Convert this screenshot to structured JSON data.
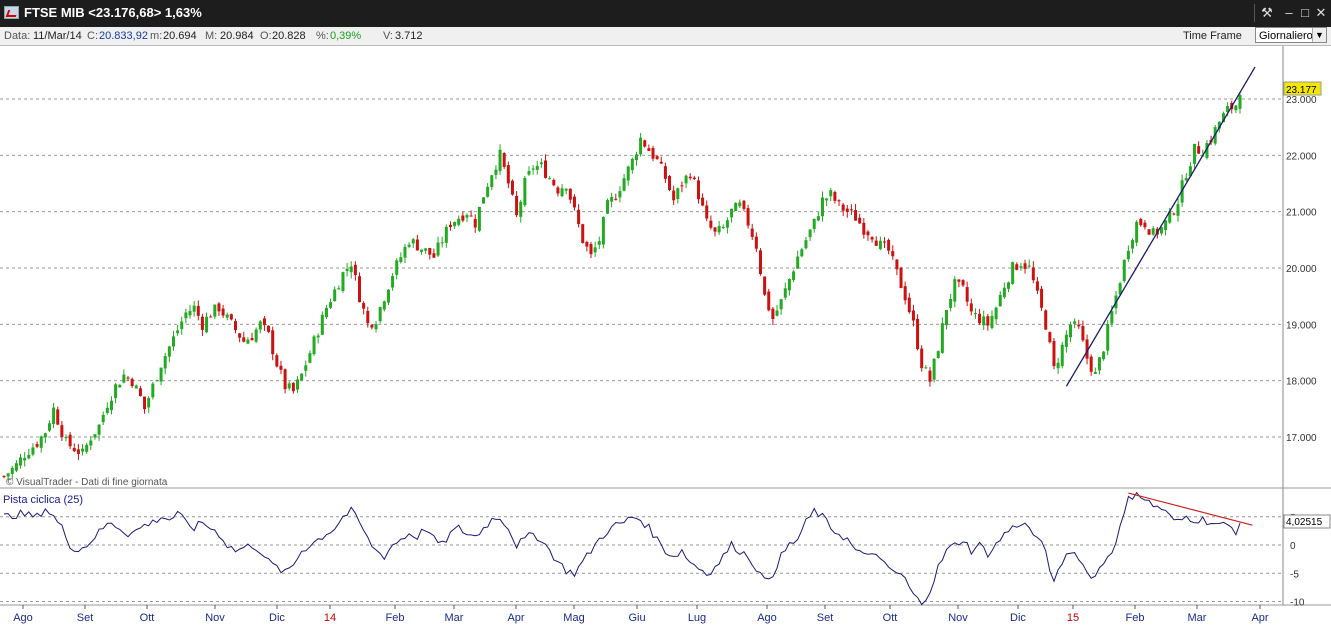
{
  "window": {
    "title": "FTSE MIB <23.176,68> 1,63%",
    "buttons": [
      "tools",
      "minimize",
      "maximize",
      "close"
    ]
  },
  "infobar": {
    "date_label": "Data:",
    "date_value": "11/Mar/14",
    "close_label": "C:",
    "close_value": "20.833,92",
    "min_label": "m:",
    "min_value": "20.694",
    "max_label": "M:",
    "max_value": "20.984",
    "open_label": "O:",
    "open_value": "20.828",
    "pct_label": "%:",
    "pct_value": "0,39%",
    "vol_label": "V:",
    "vol_value": "3.712",
    "timeframe_label": "Time Frame",
    "timeframe_value": "Giornaliero"
  },
  "watermark": "© VisualTrader - Dati di fine giornata",
  "chart_data": [
    {
      "type": "candlestick",
      "instrument": "FTSE MIB",
      "yticks": [
        "17.000",
        "18.000",
        "19.000",
        "20.000",
        "21.000",
        "22.000",
        "23.000"
      ],
      "ylim": [
        16000,
        24400
      ],
      "last_value_label": "23.177",
      "x_labels": [
        "Ago",
        "Set",
        "Ott",
        "Nov",
        "Dic",
        "14",
        "Feb",
        "Mar",
        "Apr",
        "Mag",
        "Giu",
        "Lug",
        "Ago",
        "Set",
        "Ott",
        "Nov",
        "Dic",
        "15",
        "Feb",
        "Mar",
        "Apr"
      ],
      "x_label_colors": {
        "14": "#cc0000",
        "15": "#cc0000"
      },
      "close_path": [
        [
          0,
          16300
        ],
        [
          3,
          16500
        ],
        [
          5,
          16700
        ],
        [
          8,
          16900
        ],
        [
          10,
          17100
        ],
        [
          12,
          17500
        ],
        [
          13,
          17300
        ],
        [
          15,
          16900
        ],
        [
          17,
          16800
        ],
        [
          19,
          16700
        ],
        [
          21,
          17000
        ],
        [
          23,
          17200
        ],
        [
          25,
          17600
        ],
        [
          27,
          17900
        ],
        [
          29,
          18100
        ],
        [
          31,
          18000
        ],
        [
          33,
          17700
        ],
        [
          34,
          17500
        ],
        [
          36,
          17900
        ],
        [
          38,
          18300
        ],
        [
          40,
          18600
        ],
        [
          42,
          18900
        ],
        [
          44,
          19200
        ],
        [
          46,
          19300
        ],
        [
          48,
          19000
        ],
        [
          50,
          19200
        ],
        [
          52,
          19300
        ],
        [
          54,
          19100
        ],
        [
          56,
          18900
        ],
        [
          58,
          18700
        ],
        [
          60,
          18800
        ],
        [
          62,
          19000
        ],
        [
          64,
          18800
        ],
        [
          66,
          18300
        ],
        [
          68,
          17900
        ],
        [
          70,
          17800
        ],
        [
          72,
          18100
        ],
        [
          74,
          18500
        ],
        [
          76,
          18900
        ],
        [
          78,
          19300
        ],
        [
          80,
          19600
        ],
        [
          82,
          19900
        ],
        [
          84,
          20100
        ],
        [
          86,
          19500
        ],
        [
          88,
          19000
        ],
        [
          90,
          19100
        ],
        [
          92,
          19500
        ],
        [
          94,
          19900
        ],
        [
          96,
          20200
        ],
        [
          98,
          20500
        ],
        [
          100,
          20400
        ],
        [
          102,
          20300
        ],
        [
          104,
          20200
        ],
        [
          106,
          20500
        ],
        [
          108,
          20800
        ],
        [
          110,
          20900
        ],
        [
          112,
          21000
        ],
        [
          114,
          20800
        ],
        [
          116,
          21300
        ],
        [
          118,
          21700
        ],
        [
          120,
          22000
        ],
        [
          122,
          21500
        ],
        [
          124,
          20900
        ],
        [
          126,
          21500
        ],
        [
          128,
          21800
        ],
        [
          130,
          21800
        ],
        [
          132,
          21600
        ],
        [
          134,
          21400
        ],
        [
          136,
          21500
        ],
        [
          138,
          21000
        ],
        [
          140,
          20500
        ],
        [
          142,
          20200
        ],
        [
          144,
          20500
        ],
        [
          146,
          21100
        ],
        [
          148,
          21300
        ],
        [
          150,
          21600
        ],
        [
          152,
          21900
        ],
        [
          154,
          22300
        ],
        [
          156,
          22100
        ],
        [
          158,
          21900
        ],
        [
          160,
          21600
        ],
        [
          162,
          21200
        ],
        [
          164,
          21500
        ],
        [
          166,
          21700
        ],
        [
          168,
          21300
        ],
        [
          170,
          20800
        ],
        [
          172,
          20600
        ],
        [
          174,
          20700
        ],
        [
          176,
          21000
        ],
        [
          178,
          21100
        ],
        [
          180,
          20800
        ],
        [
          182,
          20400
        ],
        [
          184,
          19500
        ],
        [
          186,
          19100
        ],
        [
          188,
          19400
        ],
        [
          190,
          19800
        ],
        [
          192,
          20200
        ],
        [
          194,
          20500
        ],
        [
          196,
          20800
        ],
        [
          198,
          21200
        ],
        [
          200,
          21300
        ],
        [
          202,
          21100
        ],
        [
          204,
          21000
        ],
        [
          206,
          20900
        ],
        [
          208,
          20700
        ],
        [
          210,
          20600
        ],
        [
          212,
          20400
        ],
        [
          214,
          20300
        ],
        [
          216,
          19900
        ],
        [
          218,
          19500
        ],
        [
          220,
          19000
        ],
        [
          222,
          18300
        ],
        [
          224,
          18000
        ],
        [
          226,
          18600
        ],
        [
          228,
          19300
        ],
        [
          230,
          19700
        ],
        [
          232,
          19600
        ],
        [
          234,
          19200
        ],
        [
          236,
          19100
        ],
        [
          238,
          19000
        ],
        [
          240,
          19300
        ],
        [
          242,
          19700
        ],
        [
          244,
          20000
        ],
        [
          246,
          20100
        ],
        [
          248,
          20000
        ],
        [
          250,
          19500
        ],
        [
          252,
          19000
        ],
        [
          254,
          18200
        ],
        [
          256,
          18600
        ],
        [
          258,
          19000
        ],
        [
          260,
          18900
        ],
        [
          262,
          18400
        ],
        [
          264,
          18100
        ],
        [
          266,
          18600
        ],
        [
          268,
          19200
        ],
        [
          270,
          19800
        ],
        [
          272,
          20400
        ],
        [
          274,
          20800
        ],
        [
          276,
          20800
        ],
        [
          278,
          20600
        ],
        [
          280,
          20700
        ],
        [
          282,
          20900
        ],
        [
          284,
          21200
        ],
        [
          286,
          21700
        ],
        [
          288,
          22100
        ],
        [
          290,
          22100
        ],
        [
          292,
          22300
        ],
        [
          294,
          22600
        ],
        [
          296,
          22800
        ],
        [
          298,
          22900
        ],
        [
          299,
          23177
        ]
      ],
      "trendline": {
        "from": [
          257,
          17900
        ],
        "to": [
          299,
          23300
        ],
        "color": "#1a1a6e"
      }
    },
    {
      "type": "line",
      "series_name": "Pista ciclica (25)",
      "yticks": [
        "5",
        "0",
        "-5",
        "-10"
      ],
      "ylim": [
        -10.5,
        10
      ],
      "last_value_label": "4,02515",
      "values": [
        [
          0,
          5
        ],
        [
          4,
          5.5
        ],
        [
          8,
          5
        ],
        [
          10,
          6.5
        ],
        [
          12,
          5
        ],
        [
          14,
          3
        ],
        [
          16,
          0
        ],
        [
          18,
          -1
        ],
        [
          20,
          0
        ],
        [
          22,
          1.5
        ],
        [
          24,
          3
        ],
        [
          26,
          4
        ],
        [
          28,
          3
        ],
        [
          30,
          2
        ],
        [
          32,
          2.5
        ],
        [
          34,
          3.5
        ],
        [
          36,
          4
        ],
        [
          38,
          5
        ],
        [
          40,
          4.5
        ],
        [
          42,
          5.5
        ],
        [
          44,
          4
        ],
        [
          46,
          3
        ],
        [
          48,
          4
        ],
        [
          50,
          3
        ],
        [
          52,
          2
        ],
        [
          54,
          0
        ],
        [
          56,
          -1
        ],
        [
          58,
          -0.5
        ],
        [
          60,
          0
        ],
        [
          62,
          -1
        ],
        [
          64,
          -3
        ],
        [
          66,
          -4
        ],
        [
          68,
          -5
        ],
        [
          70,
          -3.5
        ],
        [
          72,
          -1
        ],
        [
          74,
          0
        ],
        [
          76,
          1
        ],
        [
          78,
          2
        ],
        [
          80,
          3
        ],
        [
          82,
          5
        ],
        [
          84,
          6
        ],
        [
          86,
          4
        ],
        [
          88,
          1
        ],
        [
          90,
          -1
        ],
        [
          92,
          -2
        ],
        [
          94,
          0
        ],
        [
          96,
          1
        ],
        [
          98,
          2
        ],
        [
          100,
          1.5
        ],
        [
          102,
          3
        ],
        [
          104,
          1
        ],
        [
          106,
          0
        ],
        [
          108,
          2
        ],
        [
          110,
          3
        ],
        [
          112,
          2
        ],
        [
          114,
          1.5
        ],
        [
          116,
          3
        ],
        [
          118,
          4.5
        ],
        [
          120,
          5
        ],
        [
          122,
          3
        ],
        [
          124,
          0
        ],
        [
          126,
          1
        ],
        [
          128,
          2
        ],
        [
          130,
          1
        ],
        [
          132,
          -1
        ],
        [
          134,
          -3
        ],
        [
          136,
          -4.5
        ],
        [
          138,
          -5
        ],
        [
          140,
          -3
        ],
        [
          142,
          -1
        ],
        [
          144,
          1
        ],
        [
          146,
          2.5
        ],
        [
          148,
          3.5
        ],
        [
          150,
          4
        ],
        [
          152,
          5
        ],
        [
          154,
          4.5
        ],
        [
          156,
          3
        ],
        [
          158,
          1
        ],
        [
          160,
          -1
        ],
        [
          162,
          -2
        ],
        [
          164,
          -1
        ],
        [
          166,
          -3
        ],
        [
          168,
          -4
        ],
        [
          170,
          -5
        ],
        [
          172,
          -4
        ],
        [
          174,
          -2
        ],
        [
          176,
          0
        ],
        [
          178,
          -1
        ],
        [
          180,
          -2
        ],
        [
          182,
          -4
        ],
        [
          184,
          -6.5
        ],
        [
          186,
          -5
        ],
        [
          188,
          -2
        ],
        [
          190,
          0
        ],
        [
          192,
          1
        ],
        [
          194,
          4
        ],
        [
          196,
          6
        ],
        [
          198,
          5
        ],
        [
          200,
          3
        ],
        [
          202,
          2
        ],
        [
          204,
          1
        ],
        [
          206,
          -1
        ],
        [
          208,
          -2
        ],
        [
          210,
          -1
        ],
        [
          212,
          -3
        ],
        [
          214,
          -4
        ],
        [
          216,
          -5
        ],
        [
          218,
          -6
        ],
        [
          220,
          -9
        ],
        [
          222,
          -10.2
        ],
        [
          224,
          -8
        ],
        [
          226,
          -4
        ],
        [
          228,
          -1
        ],
        [
          230,
          0
        ],
        [
          232,
          1
        ],
        [
          234,
          -1
        ],
        [
          236,
          0
        ],
        [
          238,
          -1.5
        ],
        [
          240,
          0
        ],
        [
          242,
          2
        ],
        [
          244,
          3
        ],
        [
          246,
          4
        ],
        [
          248,
          3
        ],
        [
          250,
          1
        ],
        [
          252,
          -1
        ],
        [
          254,
          -7
        ],
        [
          256,
          -3
        ],
        [
          258,
          -1
        ],
        [
          260,
          -2
        ],
        [
          262,
          -5
        ],
        [
          264,
          -5.5
        ],
        [
          266,
          -3
        ],
        [
          268,
          -1
        ],
        [
          270,
          3
        ],
        [
          272,
          8
        ],
        [
          274,
          9.5
        ],
        [
          276,
          8
        ],
        [
          278,
          7
        ],
        [
          280,
          6.5
        ],
        [
          282,
          5
        ],
        [
          284,
          4
        ],
        [
          286,
          5
        ],
        [
          288,
          4.5
        ],
        [
          290,
          4.5
        ],
        [
          292,
          4
        ],
        [
          294,
          3.5
        ],
        [
          296,
          3.5
        ],
        [
          298,
          2.5
        ],
        [
          299,
          4
        ]
      ],
      "trendline": {
        "from": [
          272,
          9.2
        ],
        "to": [
          302,
          3.5
        ],
        "color": "#cc2222"
      }
    }
  ]
}
